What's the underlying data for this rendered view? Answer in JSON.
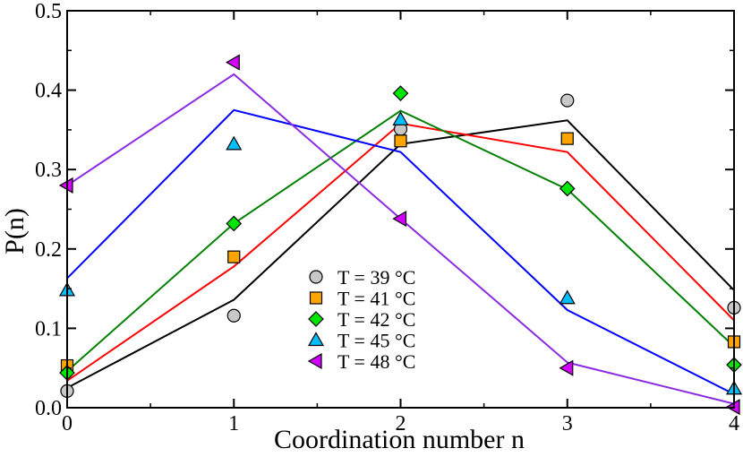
{
  "chart_data": {
    "type": "scatter",
    "title": "",
    "xlabel": "Coordination number n",
    "ylabel": "P(n)",
    "xlim": [
      0,
      4
    ],
    "ylim": [
      0,
      0.5
    ],
    "x_ticks": [
      0,
      1,
      2,
      3,
      4
    ],
    "x_tick_labels": [
      "0",
      "1",
      "2",
      "3",
      "4"
    ],
    "y_ticks": [
      0,
      0.1,
      0.2,
      0.3,
      0.4,
      0.5
    ],
    "y_tick_labels": [
      "0.0",
      "0.1",
      "0.2",
      "0.3",
      "0.4",
      "0.5"
    ],
    "grid": false,
    "legend_position": "center-bottom",
    "x": [
      0,
      1,
      2,
      3,
      4
    ],
    "series": [
      {
        "name": "T = 39 °C",
        "marker": "circle",
        "line_color": "#000000",
        "marker_fill": "#c8c8c8",
        "points": [
          0.021,
          0.116,
          0.351,
          0.387,
          0.126
        ],
        "fit": [
          0.025,
          0.136,
          0.332,
          0.362,
          0.148
        ]
      },
      {
        "name": "T = 41 °C",
        "marker": "square",
        "line_color": "#ff0000",
        "marker_fill": "#ffa500",
        "points": [
          0.053,
          0.19,
          0.336,
          0.339,
          0.083
        ],
        "fit": [
          0.034,
          0.178,
          0.358,
          0.322,
          0.11
        ]
      },
      {
        "name": "T = 42 °C",
        "marker": "diamond",
        "line_color": "#008000",
        "marker_fill": "#00e600",
        "points": [
          0.044,
          0.232,
          0.396,
          0.276,
          0.054
        ],
        "fit": [
          0.046,
          0.232,
          0.374,
          0.275,
          0.077
        ]
      },
      {
        "name": "T = 45 °C",
        "marker": "triangle-up",
        "line_color": "#0000ff",
        "marker_fill": "#00bfff",
        "points": [
          0.148,
          0.332,
          0.363,
          0.138,
          0.024
        ],
        "fit": [
          0.163,
          0.375,
          0.322,
          0.123,
          0.017
        ]
      },
      {
        "name": "T = 48 °C",
        "marker": "triangle-left",
        "line_color": "#8a2be2",
        "marker_fill": "#d400ff",
        "points": [
          0.28,
          0.435,
          0.238,
          0.05,
          0.001
        ],
        "fit": [
          0.28,
          0.42,
          0.238,
          0.057,
          0.005
        ]
      }
    ]
  }
}
